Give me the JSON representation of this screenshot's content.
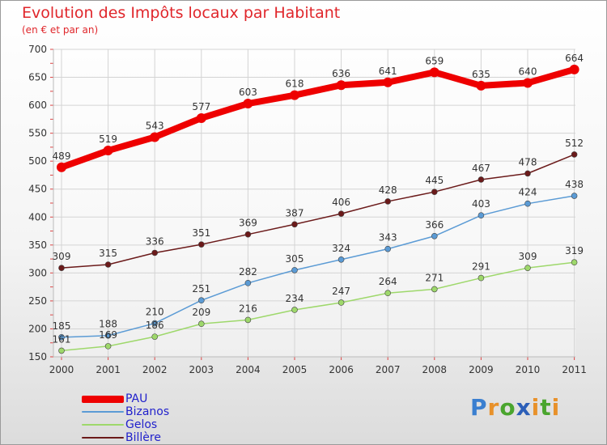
{
  "title": "Evolution des Impôts locaux par Habitant",
  "subtitle": "(en € et par an)",
  "brand": {
    "letters": [
      "P",
      "r",
      "o",
      "x",
      "i",
      "t",
      "i"
    ],
    "colors": [
      "#3a7fd0",
      "#e8912a",
      "#4aa52e",
      "#2c5fb8",
      "#e8912a",
      "#4aa52e",
      "#e8912a"
    ]
  },
  "chart_data": {
    "type": "line",
    "x": [
      "2000",
      "2001",
      "2002",
      "2003",
      "2004",
      "2005",
      "2006",
      "2007",
      "2008",
      "2009",
      "2010",
      "2011"
    ],
    "ylim": [
      150,
      700
    ],
    "yticks": [
      150,
      200,
      250,
      300,
      350,
      400,
      450,
      500,
      550,
      600,
      650,
      700
    ],
    "grid": true,
    "legend_position": "bottom-left",
    "series": [
      {
        "name": "PAU",
        "color": "#ee0000",
        "values": [
          489,
          519,
          543,
          577,
          603,
          618,
          636,
          641,
          659,
          635,
          640,
          664
        ]
      },
      {
        "name": "Bizanos",
        "color": "#5b9bd5",
        "values": [
          185,
          188,
          210,
          251,
          282,
          305,
          324,
          343,
          366,
          403,
          424,
          438
        ]
      },
      {
        "name": "Gelos",
        "color": "#9ed86b",
        "values": [
          161,
          169,
          186,
          209,
          216,
          234,
          247,
          264,
          271,
          291,
          309,
          319
        ]
      },
      {
        "name": "Billère",
        "color": "#6b1a1a",
        "values": [
          309,
          315,
          336,
          351,
          369,
          387,
          406,
          428,
          445,
          467,
          478,
          512
        ]
      }
    ]
  }
}
